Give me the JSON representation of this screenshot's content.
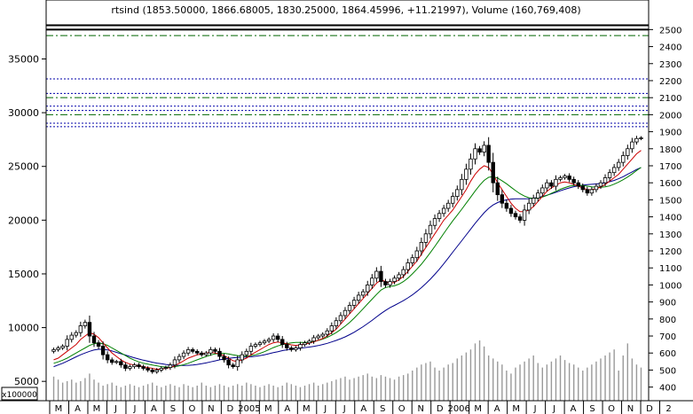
{
  "chart_data": {
    "type": "candlestick",
    "title": "rtsind (1853.50000, 1866.68005, 1830.25000, 1864.45996, +11.21997), Volume (160,769,408)",
    "volume_unit_label": "x100000",
    "left_axis": {
      "ylim": [
        3200,
        39000
      ],
      "ticks": [
        5000,
        10000,
        15000,
        20000,
        25000,
        30000,
        35000
      ]
    },
    "right_axis": {
      "ylim": [
        320,
        2580
      ],
      "ticks": [
        400,
        500,
        600,
        700,
        800,
        900,
        1000,
        1100,
        1200,
        1300,
        1400,
        1500,
        1600,
        1700,
        1800,
        1900,
        2000,
        2100,
        2200,
        2300,
        2400,
        2500
      ]
    },
    "x_axis": {
      "labels": [
        "M",
        "A",
        "M",
        "J",
        "J",
        "A",
        "S",
        "O",
        "N",
        "D",
        "2005",
        "M",
        "A",
        "M",
        "J",
        "J",
        "A",
        "S",
        "O",
        "N",
        "D",
        "2006",
        "M",
        "A",
        "M",
        "J",
        "J",
        "A",
        "S",
        "O",
        "N",
        "D",
        "2"
      ]
    },
    "horizontal_lines": [
      {
        "value": 2525,
        "style": "solid",
        "color": "#000000"
      },
      {
        "value": 2500,
        "style": "solid",
        "color": "#000000"
      },
      {
        "value": 2465,
        "style": "dashdot",
        "color": "#006600"
      },
      {
        "value": 2210,
        "style": "dotted",
        "color": "#0000aa"
      },
      {
        "value": 2125,
        "style": "dotted",
        "color": "#0000aa"
      },
      {
        "value": 2100,
        "style": "dashdot",
        "color": "#006600"
      },
      {
        "value": 2050,
        "style": "dotted",
        "color": "#0000aa"
      },
      {
        "value": 2025,
        "style": "dotted",
        "color": "#0000aa"
      },
      {
        "value": 2000,
        "style": "dashdot",
        "color": "#006600"
      },
      {
        "value": 1950,
        "style": "dotted",
        "color": "#0000aa"
      },
      {
        "value": 1930,
        "style": "dotted",
        "color": "#0000aa"
      }
    ],
    "price_weekly_close": [
      620,
      630,
      640,
      680,
      705,
      720,
      760,
      780,
      700,
      660,
      640,
      590,
      560,
      545,
      550,
      530,
      510,
      520,
      530,
      520,
      510,
      500,
      490,
      500,
      510,
      515,
      530,
      560,
      580,
      600,
      620,
      610,
      600,
      590,
      600,
      620,
      610,
      580,
      560,
      530,
      520,
      560,
      590,
      610,
      640,
      650,
      660,
      670,
      680,
      700,
      680,
      650,
      630,
      620,
      630,
      650,
      660,
      670,
      690,
      700,
      710,
      730,
      760,
      790,
      820,
      850,
      880,
      910,
      940,
      960,
      1000,
      1040,
      1080,
      1020,
      1000,
      1020,
      1040,
      1060,
      1090,
      1130,
      1160,
      1200,
      1250,
      1300,
      1350,
      1390,
      1420,
      1450,
      1480,
      1520,
      1560,
      1620,
      1680,
      1740,
      1800,
      1780,
      1820,
      1720,
      1600,
      1530,
      1480,
      1450,
      1420,
      1400,
      1380,
      1440,
      1480,
      1510,
      1540,
      1570,
      1600,
      1580,
      1620,
      1630,
      1640,
      1620,
      1600,
      1580,
      1560,
      1540,
      1560,
      1580,
      1600,
      1630,
      1660,
      1690,
      1720,
      1760,
      1800,
      1840,
      1860,
      1864
    ],
    "ma_red_weekly": [
      560,
      570,
      590,
      610,
      630,
      650,
      680,
      700,
      720,
      710,
      690,
      660,
      630,
      600,
      580,
      560,
      545,
      535,
      530,
      525,
      520,
      515,
      510,
      505,
      505,
      510,
      515,
      525,
      540,
      555,
      570,
      580,
      590,
      595,
      600,
      605,
      600,
      595,
      585,
      570,
      555,
      550,
      560,
      570,
      590,
      605,
      620,
      635,
      650,
      660,
      665,
      660,
      655,
      648,
      645,
      648,
      652,
      658,
      665,
      675,
      685,
      700,
      720,
      740,
      770,
      800,
      830,
      860,
      890,
      920,
      950,
      980,
      1010,
      1030,
      1020,
      1010,
      1015,
      1030,
      1050,
      1080,
      1110,
      1140,
      1180,
      1220,
      1260,
      1300,
      1340,
      1380,
      1410,
      1440,
      1480,
      1520,
      1560,
      1610,
      1650,
      1680,
      1700,
      1690,
      1650,
      1600,
      1560,
      1520,
      1480,
      1450,
      1430,
      1430,
      1440,
      1460,
      1490,
      1520,
      1550,
      1570,
      1585,
      1600,
      1605,
      1600,
      1590,
      1580,
      1570,
      1560,
      1560,
      1565,
      1575,
      1590,
      1610,
      1630,
      1650,
      1680,
      1710,
      1740,
      1770,
      1790
    ],
    "ma_green_weekly": [
      540,
      548,
      558,
      570,
      585,
      600,
      615,
      630,
      645,
      655,
      660,
      655,
      645,
      630,
      615,
      600,
      585,
      570,
      558,
      548,
      540,
      535,
      530,
      525,
      520,
      518,
      518,
      520,
      525,
      532,
      540,
      550,
      560,
      570,
      580,
      588,
      595,
      598,
      598,
      595,
      590,
      585,
      582,
      582,
      585,
      590,
      598,
      608,
      620,
      632,
      642,
      650,
      656,
      660,
      662,
      662,
      662,
      664,
      668,
      674,
      682,
      692,
      705,
      720,
      738,
      758,
      780,
      805,
      832,
      860,
      888,
      916,
      944,
      970,
      985,
      990,
      995,
      1005,
      1020,
      1040,
      1065,
      1092,
      1122,
      1155,
      1190,
      1226,
      1264,
      1302,
      1340,
      1376,
      1410,
      1445,
      1480,
      1516,
      1552,
      1586,
      1614,
      1632,
      1636,
      1628,
      1612,
      1594,
      1574,
      1554,
      1536,
      1522,
      1512,
      1508,
      1510,
      1516,
      1526,
      1538,
      1550,
      1562,
      1572,
      1580,
      1584,
      1586,
      1584,
      1580,
      1576,
      1574,
      1574,
      1576,
      1582,
      1592,
      1604,
      1618,
      1634,
      1652,
      1672,
      1690
    ],
    "ma_blue_weekly": [
      520,
      530,
      540,
      552,
      565,
      578,
      590,
      600,
      610,
      618,
      622,
      622,
      618,
      612,
      604,
      596,
      588,
      580,
      572,
      565,
      558,
      552,
      546,
      541,
      537,
      533,
      530,
      528,
      527,
      527,
      528,
      530,
      533,
      537,
      542,
      548,
      554,
      560,
      565,
      569,
      572,
      574,
      575,
      576,
      578,
      581,
      585,
      590,
      596,
      602,
      608,
      614,
      619,
      623,
      626,
      629,
      632,
      635,
      639,
      644,
      650,
      657,
      665,
      674,
      684,
      695,
      708,
      722,
      738,
      755,
      773,
      792,
      812,
      832,
      850,
      866,
      880,
      894,
      908,
      924,
      942,
      962,
      984,
      1008,
      1034,
      1062,
      1092,
      1124,
      1158,
      1192,
      1226,
      1260,
      1294,
      1328,
      1362,
      1394,
      1424,
      1450,
      1470,
      1484,
      1494,
      1500,
      1504,
      1506,
      1506,
      1506,
      1507,
      1510,
      1514,
      1520,
      1527,
      1535,
      1544,
      1553,
      1562,
      1570,
      1577,
      1582,
      1586,
      1589,
      1591,
      1593,
      1596,
      1600,
      1606,
      1614,
      1624,
      1636,
      1650,
      1664,
      1678,
      1690
    ],
    "volume": [
      16,
      14,
      12,
      13,
      14,
      12,
      13,
      15,
      18,
      14,
      12,
      10,
      11,
      12,
      10,
      9,
      10,
      11,
      10,
      9,
      10,
      11,
      12,
      10,
      9,
      10,
      11,
      10,
      9,
      11,
      10,
      9,
      10,
      12,
      10,
      9,
      10,
      11,
      10,
      9,
      10,
      11,
      10,
      12,
      11,
      10,
      9,
      10,
      11,
      10,
      9,
      10,
      12,
      11,
      10,
      9,
      10,
      11,
      12,
      10,
      11,
      12,
      13,
      14,
      15,
      16,
      14,
      15,
      16,
      17,
      18,
      16,
      15,
      17,
      16,
      15,
      14,
      16,
      17,
      18,
      20,
      22,
      24,
      25,
      26,
      22,
      20,
      22,
      24,
      25,
      28,
      30,
      32,
      34,
      38,
      40,
      36,
      30,
      28,
      26,
      24,
      20,
      18,
      22,
      24,
      26,
      28,
      30,
      25,
      22,
      24,
      26,
      28,
      30,
      27,
      25,
      24,
      22,
      20,
      22,
      24,
      26,
      28,
      30,
      32,
      34,
      20,
      30,
      38,
      28,
      24,
      22
    ]
  }
}
